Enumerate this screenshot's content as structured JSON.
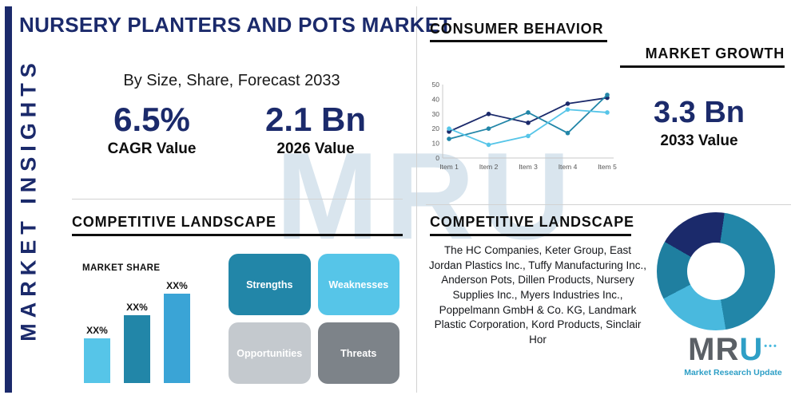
{
  "page": {
    "title": "NURSERY PLANTERS AND POTS MARKET",
    "sidebar": "MARKET INSIGHTS",
    "subtitle": "By Size, Share, Forecast 2033",
    "watermark": "MRU",
    "accent_color": "#1b2a6b"
  },
  "stats": {
    "cagr_value": "6.5%",
    "cagr_label": "CAGR Value",
    "value_2026": "2.1 Bn",
    "value_2026_label": "2026 Value",
    "value_2033": "3.3 Bn",
    "value_2033_label": "2033 Value"
  },
  "headers": {
    "consumer_behavior": "CONSUMER BEHAVIOR",
    "market_growth": "MARKET GROWTH",
    "competitive_landscape_left": "COMPETITIVE LANDSCAPE",
    "competitive_landscape_right": "COMPETITIVE LANDSCAPE",
    "market_share": "MARKET SHARE"
  },
  "swot": {
    "items": [
      {
        "label": "Strengths",
        "color": "#2286a8",
        "text_color": "#ffffff"
      },
      {
        "label": "Weaknesses",
        "color": "#56c5e8",
        "text_color": "#ffffff"
      },
      {
        "label": "Opportunities",
        "color": "#c4c9ce",
        "text_color": "#ffffff"
      },
      {
        "label": "Threats",
        "color": "#7d8389",
        "text_color": "#ffffff"
      }
    ]
  },
  "companies": "The HC Companies, Keter Group, East Jordan Plastics Inc., Tuffy Manufacturing Inc., Anderson Pots, Dillen Products, Nursery Supplies Inc., Myers Industries Inc., Poppelmann GmbH & Co. KG, Landmark Plastic Corporation, Kord Products, Sinclair Hor",
  "chart_data": [
    {
      "type": "line",
      "title": "Market Growth",
      "x": [
        "Item 1",
        "Item 2",
        "Item 3",
        "Item 4",
        "Item 5"
      ],
      "series": [
        {
          "name": "navy-series",
          "color": "#1b2a6b",
          "values": [
            18,
            30,
            24,
            37,
            41
          ]
        },
        {
          "name": "teal-series",
          "color": "#2286a8",
          "values": [
            13,
            20,
            31,
            17,
            43
          ]
        },
        {
          "name": "light-blue-series",
          "color": "#56c5e8",
          "values": [
            20,
            9,
            15,
            33,
            31
          ]
        }
      ],
      "ylim": [
        0,
        50
      ],
      "yticks": [
        0,
        10,
        20,
        30,
        40,
        50
      ],
      "grid": false,
      "legend": false
    },
    {
      "type": "bar",
      "title": "MARKET SHARE",
      "categories": [
        "",
        "",
        ""
      ],
      "values": [
        25,
        38,
        50
      ],
      "value_labels": [
        "XX%",
        "XX%",
        "XX%"
      ],
      "colors": [
        "#56c5e8",
        "#2286a8",
        "#3aa4d6"
      ],
      "ylim": [
        0,
        50
      ]
    },
    {
      "type": "pie",
      "title": "Competitive landscape donut",
      "values": [
        19,
        45,
        20,
        16
      ],
      "colors": [
        "#1b2a6b",
        "#2286a8",
        "#49b9de",
        "#1f7fa0"
      ],
      "rotation_deg": 300,
      "donut": true
    }
  ],
  "logo": {
    "letters": [
      "M",
      "R",
      "U"
    ],
    "letter_colors": [
      "#5b6066",
      "#5b6066",
      "#2e9fc6"
    ],
    "dots_icon": "•••",
    "tagline": "Market Research Update"
  }
}
